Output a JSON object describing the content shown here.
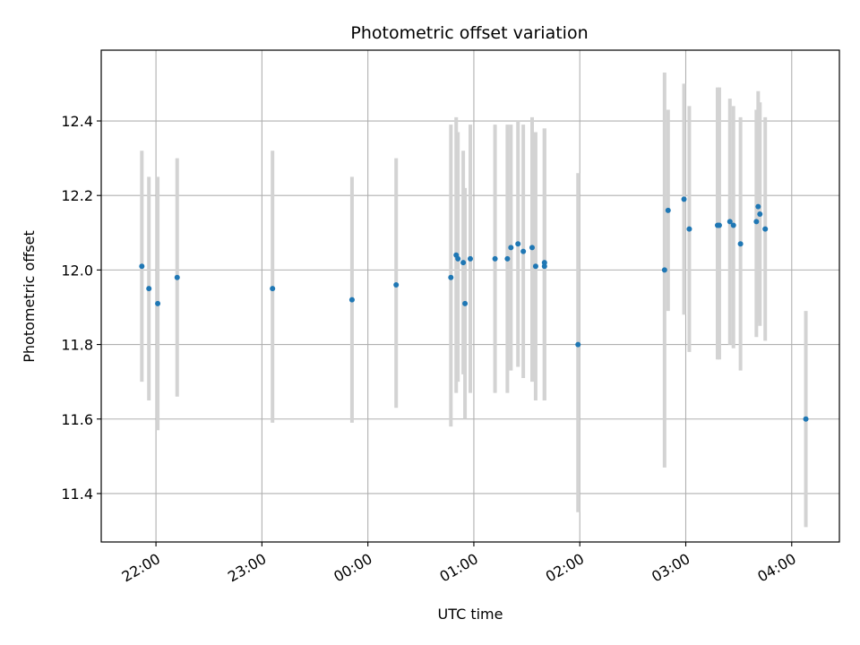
{
  "chart_data": {
    "type": "scatter",
    "title": "Photometric offset variation",
    "xlabel": "UTC time",
    "ylabel": "Photometric offset",
    "x_axis": "time",
    "xlim": [
      "21:29",
      "04:27"
    ],
    "ylim": [
      11.27,
      12.59
    ],
    "grid": true,
    "x_ticks": [
      "22:00",
      "23:00",
      "00:00",
      "01:00",
      "02:00",
      "03:00",
      "04:00"
    ],
    "y_ticks": [
      "11.4",
      "11.6",
      "11.8",
      "12.0",
      "12.2",
      "12.4"
    ],
    "colors": {
      "points": "#1f77b4",
      "errorbars": "#d3d3d3",
      "grid": "#b0b0b0"
    },
    "series": [
      {
        "points": [
          {
            "x": "21:52",
            "y": 12.01,
            "ylow": 11.7,
            "yhigh": 12.32
          },
          {
            "x": "21:56",
            "y": 11.95,
            "ylow": 11.65,
            "yhigh": 12.25
          },
          {
            "x": "22:01",
            "y": 11.91,
            "ylow": 11.57,
            "yhigh": 12.25
          },
          {
            "x": "22:12",
            "y": 11.98,
            "ylow": 11.66,
            "yhigh": 12.3
          },
          {
            "x": "23:06",
            "y": 11.95,
            "ylow": 11.59,
            "yhigh": 12.32
          },
          {
            "x": "23:51",
            "y": 11.92,
            "ylow": 11.59,
            "yhigh": 12.25
          },
          {
            "x": "00:16",
            "y": 11.96,
            "ylow": 11.63,
            "yhigh": 12.3
          },
          {
            "x": "00:47",
            "y": 11.98,
            "ylow": 11.58,
            "yhigh": 12.39
          },
          {
            "x": "00:50",
            "y": 12.04,
            "ylow": 11.67,
            "yhigh": 12.41
          },
          {
            "x": "00:51",
            "y": 12.03,
            "ylow": 11.7,
            "yhigh": 12.37
          },
          {
            "x": "00:54",
            "y": 12.02,
            "ylow": 11.72,
            "yhigh": 12.32
          },
          {
            "x": "00:55",
            "y": 11.91,
            "ylow": 11.6,
            "yhigh": 12.22
          },
          {
            "x": "00:58",
            "y": 12.03,
            "ylow": 11.67,
            "yhigh": 12.39
          },
          {
            "x": "01:12",
            "y": 12.03,
            "ylow": 11.67,
            "yhigh": 12.39
          },
          {
            "x": "01:19",
            "y": 12.03,
            "ylow": 11.67,
            "yhigh": 12.39
          },
          {
            "x": "01:21",
            "y": 12.06,
            "ylow": 11.73,
            "yhigh": 12.39
          },
          {
            "x": "01:25",
            "y": 12.07,
            "ylow": 11.74,
            "yhigh": 12.4
          },
          {
            "x": "01:28",
            "y": 12.05,
            "ylow": 11.71,
            "yhigh": 12.39
          },
          {
            "x": "01:33",
            "y": 12.06,
            "ylow": 11.7,
            "yhigh": 12.41
          },
          {
            "x": "01:35",
            "y": 12.01,
            "ylow": 11.65,
            "yhigh": 12.37
          },
          {
            "x": "01:40",
            "y": 12.01,
            "ylow": 11.65,
            "yhigh": 12.38
          },
          {
            "x": "01:40",
            "y": 12.02,
            "ylow": 11.65,
            "yhigh": 12.38
          },
          {
            "x": "01:59",
            "y": 11.8,
            "ylow": 11.35,
            "yhigh": 12.26
          },
          {
            "x": "02:48",
            "y": 12.0,
            "ylow": 11.47,
            "yhigh": 12.53
          },
          {
            "x": "02:50",
            "y": 12.16,
            "ylow": 11.89,
            "yhigh": 12.43
          },
          {
            "x": "02:59",
            "y": 12.19,
            "ylow": 11.88,
            "yhigh": 12.5
          },
          {
            "x": "03:02",
            "y": 12.11,
            "ylow": 11.78,
            "yhigh": 12.44
          },
          {
            "x": "03:18",
            "y": 12.12,
            "ylow": 11.76,
            "yhigh": 12.49
          },
          {
            "x": "03:19",
            "y": 12.12,
            "ylow": 11.76,
            "yhigh": 12.49
          },
          {
            "x": "03:25",
            "y": 12.13,
            "ylow": 11.8,
            "yhigh": 12.46
          },
          {
            "x": "03:27",
            "y": 12.12,
            "ylow": 11.79,
            "yhigh": 12.44
          },
          {
            "x": "03:31",
            "y": 12.07,
            "ylow": 11.73,
            "yhigh": 12.41
          },
          {
            "x": "03:40",
            "y": 12.13,
            "ylow": 11.82,
            "yhigh": 12.43
          },
          {
            "x": "03:41",
            "y": 12.17,
            "ylow": 11.86,
            "yhigh": 12.48
          },
          {
            "x": "03:42",
            "y": 12.15,
            "ylow": 11.85,
            "yhigh": 12.45
          },
          {
            "x": "03:45",
            "y": 12.11,
            "ylow": 11.81,
            "yhigh": 12.41
          },
          {
            "x": "04:08",
            "y": 11.6,
            "ylow": 11.31,
            "yhigh": 11.89
          }
        ]
      }
    ]
  }
}
